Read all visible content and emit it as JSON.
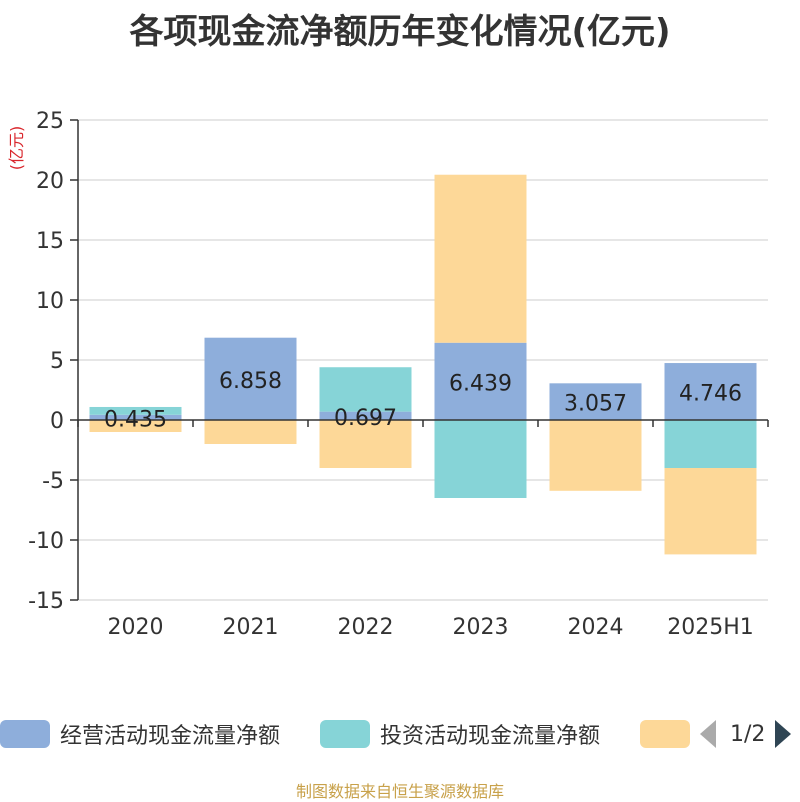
{
  "title": "各项现金流净额历年变化情况(亿元)",
  "source": "制图数据来自恒生聚源数据库",
  "pager": {
    "text": "1/2"
  },
  "colors": {
    "operating": "#8eaedb",
    "investing": "#86d4d7",
    "financing": "#fdd898"
  },
  "chart_data": {
    "type": "bar",
    "stacked": true,
    "title": "各项现金流净额历年变化情况(亿元)",
    "ylabel": "(亿元)",
    "xlabel": "",
    "ylim": [
      -15,
      25
    ],
    "yticks": [
      -15,
      -10,
      -5,
      0,
      5,
      10,
      15,
      20,
      25
    ],
    "ytick_labels": [
      "-15",
      "-10",
      "-5",
      "0",
      "5",
      "10",
      "15",
      "20",
      "25"
    ],
    "grid": true,
    "legend_position": "bottom",
    "categories": [
      "2020",
      "2021",
      "2022",
      "2023",
      "2024",
      "2025H1"
    ],
    "series": [
      {
        "name": "经营活动现金流量净额",
        "values": [
          0.435,
          6.858,
          0.697,
          6.439,
          3.057,
          4.746
        ],
        "color": "#8eaedb",
        "labels": [
          "0.435",
          "6.858",
          "0.697",
          "6.439",
          "3.057",
          "4.746"
        ]
      },
      {
        "name": "投资活动现金流量净额",
        "values": [
          0.65,
          0,
          3.7,
          -6.5,
          0,
          -4.0
        ],
        "color": "#86d4d7"
      },
      {
        "name": "",
        "values": [
          -1.0,
          -2.0,
          -4.0,
          14.0,
          -5.9,
          -7.2
        ],
        "color": "#fdd898"
      }
    ]
  }
}
